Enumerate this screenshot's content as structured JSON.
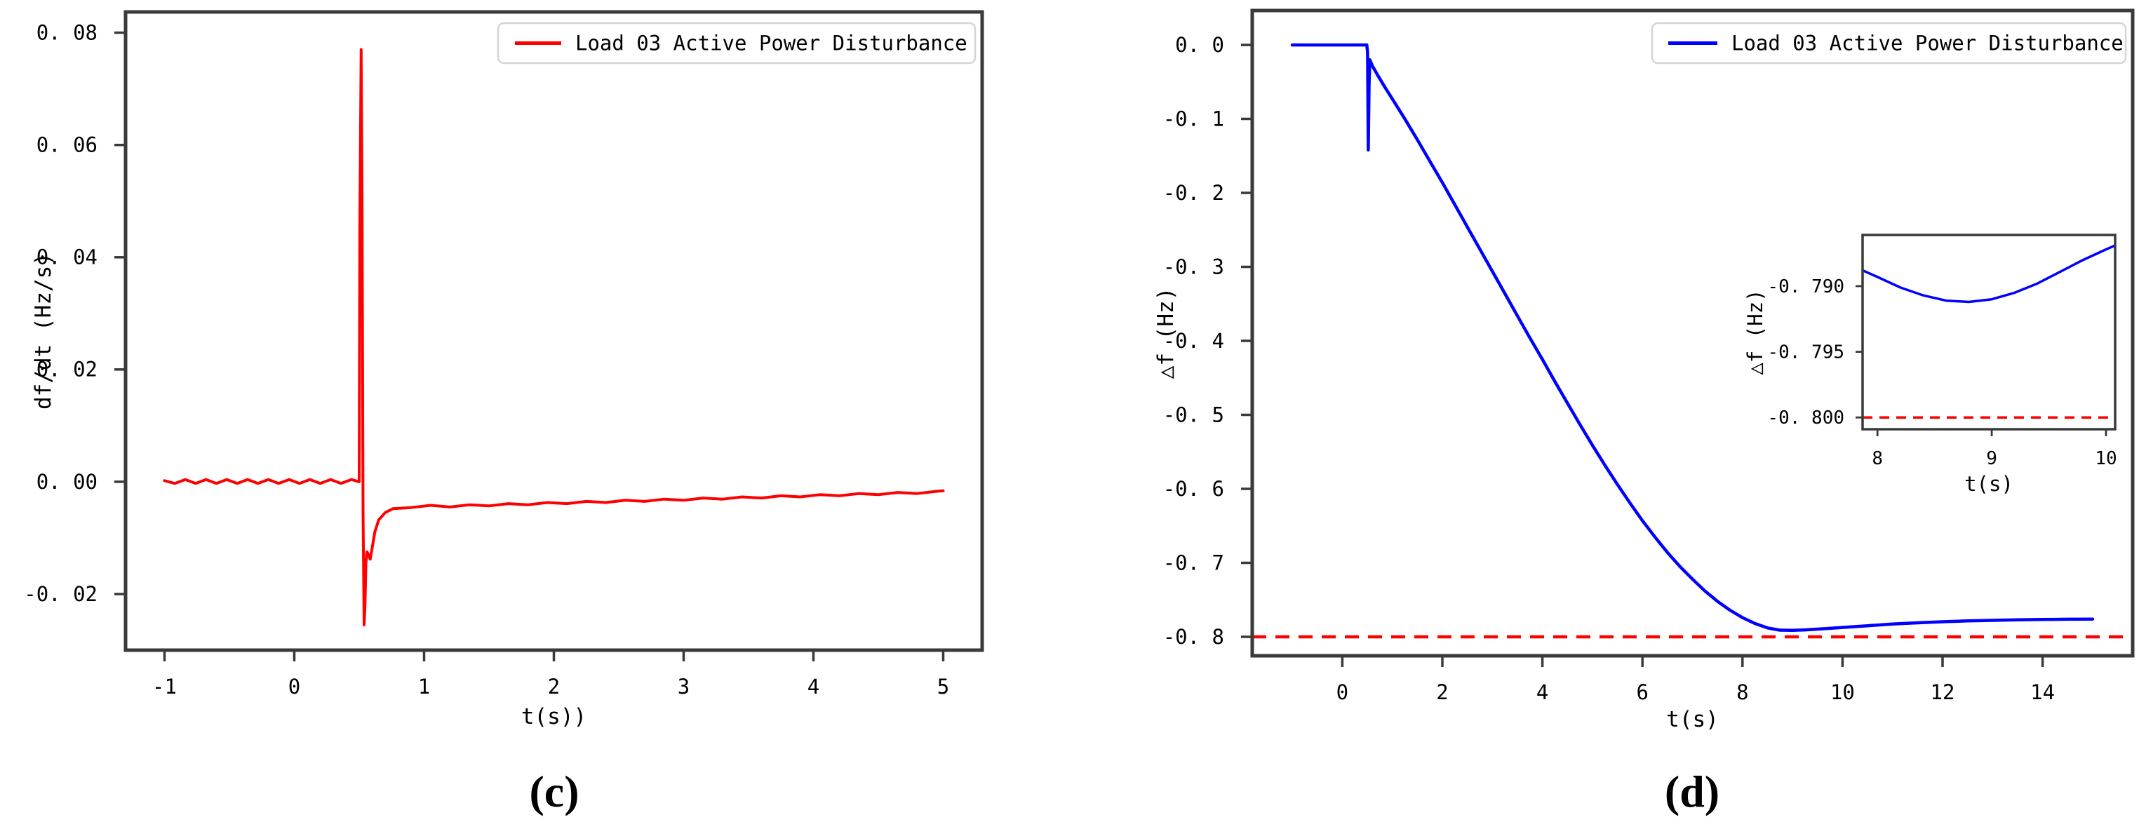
{
  "figure": {
    "background": "#ffffff",
    "spine_color": "#3a3a3a",
    "text_color": "#000000"
  },
  "chart_data": [
    {
      "id": "c",
      "type": "line",
      "caption": "(c)",
      "xlabel": "t(s))",
      "ylabel": "df/dt (Hz/s)",
      "xlim": [
        -1.3,
        5.3
      ],
      "ylim": [
        -0.03,
        0.0837
      ],
      "grid": false,
      "xticks": [
        -1,
        0,
        1,
        2,
        3,
        4,
        5
      ],
      "xtick_labels": [
        "-1",
        "0",
        "1",
        "2",
        "3",
        "4",
        "5"
      ],
      "yticks": [
        0.08,
        0.06,
        0.04,
        0.02,
        0.0,
        -0.02
      ],
      "ytick_labels": [
        "0. 08",
        "0. 06",
        "0. 04",
        "0. 02",
        "0. 00",
        "-0. 02"
      ],
      "legend": {
        "position": "upper right",
        "entries": [
          {
            "label": "Load 03 Active Power Disturbance",
            "color": "#ff0000"
          }
        ]
      },
      "hlines": [],
      "series": [
        {
          "name": "Load 03 Active Power Disturbance",
          "color": "#ff0000",
          "points": [
            [
              -1.0,
              0.0002
            ],
            [
              -0.92,
              -0.0003
            ],
            [
              -0.84,
              0.0004
            ],
            [
              -0.76,
              -0.0003
            ],
            [
              -0.68,
              0.0004
            ],
            [
              -0.6,
              -0.0003
            ],
            [
              -0.52,
              0.0004
            ],
            [
              -0.44,
              -0.0003
            ],
            [
              -0.36,
              0.0004
            ],
            [
              -0.28,
              -0.0003
            ],
            [
              -0.2,
              0.0004
            ],
            [
              -0.12,
              -0.0003
            ],
            [
              -0.04,
              0.0004
            ],
            [
              0.04,
              -0.0003
            ],
            [
              0.12,
              0.0004
            ],
            [
              0.2,
              -0.0003
            ],
            [
              0.28,
              0.0004
            ],
            [
              0.36,
              -0.0003
            ],
            [
              0.44,
              0.0004
            ],
            [
              0.5,
              0.0
            ],
            [
              0.505,
              0.045
            ],
            [
              0.515,
              0.077
            ],
            [
              0.522,
              0.05
            ],
            [
              0.53,
              -0.005
            ],
            [
              0.538,
              -0.0255
            ],
            [
              0.545,
              -0.022
            ],
            [
              0.552,
              -0.0145
            ],
            [
              0.56,
              -0.0125
            ],
            [
              0.572,
              -0.013
            ],
            [
              0.585,
              -0.0138
            ],
            [
              0.6,
              -0.0118
            ],
            [
              0.62,
              -0.009
            ],
            [
              0.65,
              -0.0068
            ],
            [
              0.7,
              -0.0055
            ],
            [
              0.76,
              -0.0048
            ],
            [
              0.9,
              -0.0046
            ],
            [
              1.05,
              -0.0042
            ],
            [
              1.2,
              -0.0045
            ],
            [
              1.35,
              -0.0041
            ],
            [
              1.5,
              -0.0043
            ],
            [
              1.65,
              -0.0039
            ],
            [
              1.8,
              -0.0041
            ],
            [
              1.95,
              -0.0037
            ],
            [
              2.1,
              -0.0039
            ],
            [
              2.25,
              -0.0035
            ],
            [
              2.4,
              -0.0037
            ],
            [
              2.55,
              -0.0033
            ],
            [
              2.7,
              -0.0035
            ],
            [
              2.85,
              -0.0031
            ],
            [
              3.0,
              -0.0033
            ],
            [
              3.15,
              -0.0029
            ],
            [
              3.3,
              -0.0031
            ],
            [
              3.45,
              -0.0027
            ],
            [
              3.6,
              -0.0029
            ],
            [
              3.75,
              -0.0025
            ],
            [
              3.9,
              -0.0027
            ],
            [
              4.05,
              -0.0023
            ],
            [
              4.2,
              -0.0025
            ],
            [
              4.35,
              -0.0021
            ],
            [
              4.5,
              -0.0023
            ],
            [
              4.65,
              -0.0019
            ],
            [
              4.8,
              -0.0021
            ],
            [
              4.95,
              -0.0017
            ],
            [
              5.0,
              -0.0016
            ]
          ]
        }
      ]
    },
    {
      "id": "d",
      "type": "line",
      "caption": "(d)",
      "xlabel": "t(s)",
      "ylabel": "△f (Hz)",
      "xlim": [
        -1.8,
        15.8
      ],
      "ylim": [
        -0.8256,
        0.0465
      ],
      "grid": false,
      "xticks": [
        0,
        2,
        4,
        6,
        8,
        10,
        12,
        14
      ],
      "xtick_labels": [
        "0",
        "2",
        "4",
        "6",
        "8",
        "10",
        "12",
        "14"
      ],
      "yticks": [
        0.0,
        -0.1,
        -0.2,
        -0.3,
        -0.4,
        -0.5,
        -0.6,
        -0.7,
        -0.8
      ],
      "ytick_labels": [
        "0. 0",
        "-0. 1",
        "-0. 2",
        "-0. 3",
        "-0. 4",
        "-0. 5",
        "-0. 6",
        "-0. 7",
        "-0. 8"
      ],
      "legend": {
        "position": "upper right",
        "entries": [
          {
            "label": "Load 03 Active Power Disturbance",
            "color": "#0000ff"
          }
        ]
      },
      "hlines": [
        {
          "y": -0.8,
          "color": "#ff0000",
          "style": "dashed"
        }
      ],
      "series": [
        {
          "name": "Load 03 Active Power Disturbance",
          "color": "#0000ff",
          "points": [
            [
              -1,
              0
            ],
            [
              0,
              0
            ],
            [
              0.49,
              0
            ],
            [
              0.505,
              -0.01
            ],
            [
              0.52,
              -0.142
            ],
            [
              0.535,
              -0.055
            ],
            [
              0.55,
              -0.02
            ],
            [
              0.6,
              -0.028
            ],
            [
              0.7,
              -0.04
            ],
            [
              0.85,
              -0.057
            ],
            [
              1,
              -0.073
            ],
            [
              1.25,
              -0.1
            ],
            [
              1.5,
              -0.128
            ],
            [
              1.75,
              -0.157
            ],
            [
              2,
              -0.186
            ],
            [
              2.25,
              -0.216
            ],
            [
              2.5,
              -0.246
            ],
            [
              2.75,
              -0.276
            ],
            [
              3,
              -0.306
            ],
            [
              3.25,
              -0.336
            ],
            [
              3.5,
              -0.366
            ],
            [
              3.75,
              -0.396
            ],
            [
              4,
              -0.425
            ],
            [
              4.25,
              -0.455
            ],
            [
              4.5,
              -0.484
            ],
            [
              4.75,
              -0.513
            ],
            [
              5,
              -0.541
            ],
            [
              5.25,
              -0.568
            ],
            [
              5.5,
              -0.594
            ],
            [
              5.75,
              -0.619
            ],
            [
              6,
              -0.643
            ],
            [
              6.25,
              -0.665
            ],
            [
              6.5,
              -0.686
            ],
            [
              6.75,
              -0.705
            ],
            [
              7,
              -0.722
            ],
            [
              7.25,
              -0.738
            ],
            [
              7.5,
              -0.752
            ],
            [
              7.75,
              -0.764
            ],
            [
              8,
              -0.774
            ],
            [
              8.25,
              -0.782
            ],
            [
              8.5,
              -0.788
            ],
            [
              8.75,
              -0.791
            ],
            [
              9,
              -0.7912
            ],
            [
              9.25,
              -0.7906
            ],
            [
              9.5,
              -0.7896
            ],
            [
              9.75,
              -0.7885
            ],
            [
              10,
              -0.7873
            ],
            [
              10.5,
              -0.785
            ],
            [
              11,
              -0.7827
            ],
            [
              11.5,
              -0.781
            ],
            [
              12,
              -0.7796
            ],
            [
              12.5,
              -0.7785
            ],
            [
              13,
              -0.7777
            ],
            [
              13.5,
              -0.7771
            ],
            [
              14,
              -0.7766
            ],
            [
              14.5,
              -0.7762
            ],
            [
              15,
              -0.776
            ]
          ]
        }
      ],
      "inset": {
        "id": "d-inset",
        "type": "line",
        "xlabel": "t(s)",
        "ylabel": "△f (Hz)",
        "xlim": [
          7.87,
          10.08
        ],
        "ylim": [
          -0.8009,
          -0.7861
        ],
        "grid": false,
        "xticks": [
          8,
          9,
          10
        ],
        "xtick_labels": [
          "8",
          "9",
          "10"
        ],
        "yticks": [
          -0.79,
          -0.795,
          -0.8
        ],
        "ytick_labels": [
          "-0. 790",
          "-0. 795",
          "-0. 800"
        ],
        "hlines": [
          {
            "y": -0.8,
            "color": "#ff0000",
            "style": "dashed"
          }
        ],
        "series": [
          {
            "name": "Load 03 Active Power Disturbance",
            "color": "#0000ff",
            "points": [
              [
                7.87,
                -0.7888
              ],
              [
                8,
                -0.7893
              ],
              [
                8.2,
                -0.7901
              ],
              [
                8.4,
                -0.7907
              ],
              [
                8.6,
                -0.7911
              ],
              [
                8.8,
                -0.7912
              ],
              [
                9,
                -0.791
              ],
              [
                9.2,
                -0.7905
              ],
              [
                9.4,
                -0.7898
              ],
              [
                9.6,
                -0.7889
              ],
              [
                9.8,
                -0.788
              ],
              [
                10,
                -0.7872
              ],
              [
                10.08,
                -0.7869
              ]
            ]
          }
        ]
      }
    }
  ]
}
